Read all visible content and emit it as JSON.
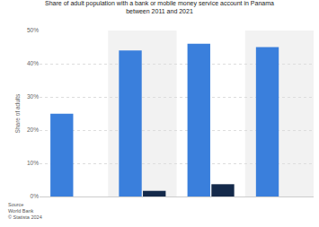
{
  "chart_data": {
    "type": "bar",
    "title": "Share of adult population with a bank or mobile money service account in Panama between 2011 and 2021",
    "y_label": "Share of adults",
    "categories": [
      null,
      null,
      null,
      null
    ],
    "series": [
      {
        "color": "#3a7fdc",
        "values": [
          24.9,
          44.0,
          46.0,
          45.0
        ]
      },
      {
        "color": "#14294a",
        "values": [
          null,
          1.7,
          3.7,
          null
        ]
      }
    ],
    "ylim": [
      0,
      50
    ],
    "yticks": [
      {
        "value": 0,
        "label": "0%"
      },
      {
        "value": 10,
        "label": "10%"
      },
      {
        "value": 20,
        "label": "20%"
      },
      {
        "value": 30,
        "label": "30%"
      },
      {
        "value": 40,
        "label": "40%"
      },
      {
        "value": 50,
        "label": "50%"
      }
    ],
    "grid": true,
    "tick_labels": "y",
    "source": [
      "Source",
      "World Bank",
      "© Statista 2024"
    ]
  }
}
